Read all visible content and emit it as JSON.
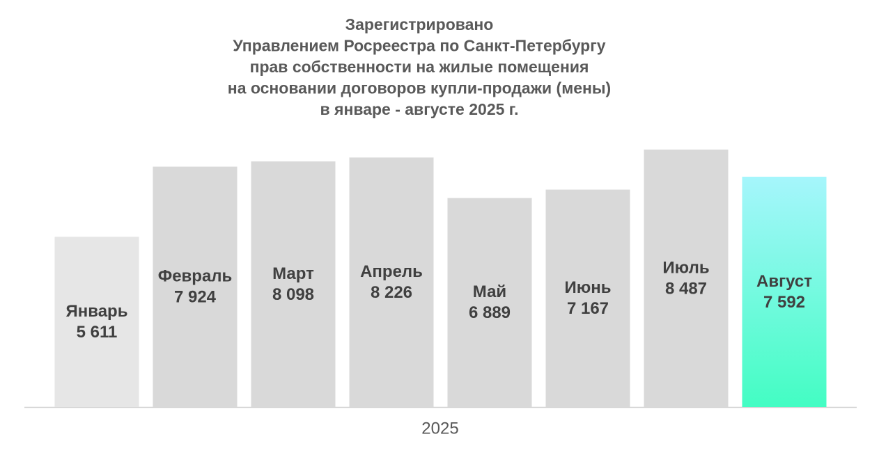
{
  "chart_data": {
    "type": "bar",
    "title": [
      "Зарегистрировано",
      "Управлением Росреестра по Санкт-Петербургу",
      "прав собственности на жилые помещения",
      "на основании договоров купли-продажи (мены)",
      "в январе - августе 2025 г."
    ],
    "x_label": "2025",
    "categories": [
      "Январь",
      "Февраль",
      "Март",
      "Апрель",
      "Май",
      "Июнь",
      "Июль",
      "Август"
    ],
    "values": [
      5611,
      7924,
      8098,
      8226,
      6889,
      7167,
      8487,
      7592
    ],
    "value_labels": [
      "5 611",
      "7 924",
      "8 098",
      "8 226",
      "6 889",
      "7 167",
      "8 487",
      "7 592"
    ],
    "colors": [
      "#e6e6e6",
      "#d9d9d9",
      "#d9d9d9",
      "#d9d9d9",
      "#d9d9d9",
      "#d9d9d9",
      "#d9d9d9",
      "gradient"
    ],
    "gradient": [
      "#a6f6fc",
      "#43fdc3"
    ]
  }
}
